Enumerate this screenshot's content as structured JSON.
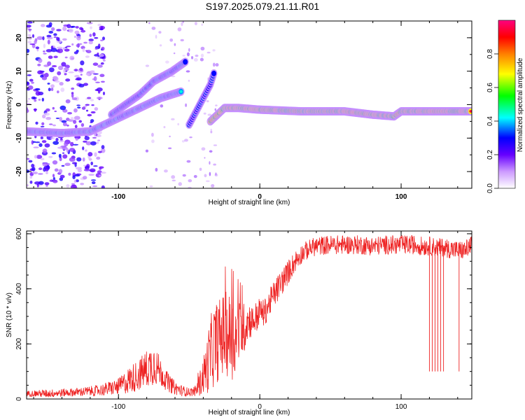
{
  "figure": {
    "title": "S197.2025.079.21.11.R01"
  },
  "chart_data": [
    {
      "type": "heatmap",
      "xlabel": "Height of straight line (km)",
      "ylabel": "Frequency (Hz)",
      "xlim": [
        -165,
        150
      ],
      "ylim": [
        -25,
        25
      ],
      "xticks": [
        -100,
        0,
        100
      ],
      "yticks": [
        -20,
        -10,
        0,
        10,
        20
      ],
      "colorbar": {
        "label": "Normalized spectral amplitude",
        "range": [
          0,
          1
        ],
        "ticks": [
          "0.0",
          "0.2",
          "0.4",
          "0.6",
          "0.8"
        ],
        "colormap": [
          "#ffffff",
          "#cc99ff",
          "#6600ff",
          "#0000ff",
          "#00ffff",
          "#00ff00",
          "#ffff00",
          "#ff7f00",
          "#ff0000",
          "#ff0080"
        ]
      },
      "ridges": [
        {
          "points": [
            [
              -165,
              -8
            ],
            [
              -140,
              -8.5
            ],
            [
              -120,
              -8
            ],
            [
              -100,
              -4
            ],
            [
              -85,
              -1
            ],
            [
              -70,
              2
            ],
            [
              -55,
              4
            ]
          ],
          "amplitude": 0.45
        },
        {
          "points": [
            [
              -105,
              -3
            ],
            [
              -95,
              0
            ],
            [
              -85,
              3
            ],
            [
              -75,
              7
            ],
            [
              -62,
              10
            ],
            [
              -52,
              13
            ]
          ],
          "amplitude": 0.4
        },
        {
          "points": [
            [
              -50,
              -6
            ],
            [
              -45,
              -2
            ],
            [
              -40,
              2
            ],
            [
              -35,
              6
            ],
            [
              -32,
              10
            ]
          ],
          "amplitude": 0.35
        },
        {
          "points": [
            [
              -35,
              -5
            ],
            [
              -30,
              -3
            ],
            [
              -25,
              -1
            ],
            [
              -15,
              -1
            ],
            [
              0,
              -1.5
            ],
            [
              30,
              -2
            ],
            [
              60,
              -2
            ],
            [
              80,
              -3
            ],
            [
              95,
              -3.5
            ],
            [
              100,
              -2
            ],
            [
              120,
              -2
            ],
            [
              150,
              -2
            ]
          ],
          "amplitude": 0.95
        }
      ],
      "noise_region": {
        "x": [
          -165,
          -110
        ],
        "freq_range": [
          -25,
          25
        ]
      }
    },
    {
      "type": "line",
      "xlabel": "Height of straight line (km)",
      "ylabel": "SNR (10 * v/v)",
      "xlim": [
        -165,
        150
      ],
      "ylim": [
        0,
        610
      ],
      "xticks": [
        -100,
        0,
        100
      ],
      "yticks": [
        0,
        200,
        400,
        600
      ],
      "series": [
        {
          "color": "#ee2222",
          "x": [
            -165,
            -150,
            -130,
            -115,
            -100,
            -92,
            -85,
            -80,
            -75,
            -70,
            -65,
            -60,
            -55,
            -50,
            -45,
            -42,
            -38,
            -35,
            -32,
            -28,
            -25,
            -22,
            -18,
            -15,
            -12,
            -8,
            -5,
            -2,
            0,
            3,
            5,
            8,
            10,
            15,
            20,
            25,
            30,
            35,
            40,
            50,
            60,
            70,
            80,
            90,
            100,
            105,
            110,
            115,
            120,
            125,
            130,
            135,
            140,
            145,
            150
          ],
          "y": [
            20,
            20,
            25,
            30,
            45,
            70,
            90,
            110,
            130,
            95,
            60,
            40,
            30,
            25,
            30,
            60,
            110,
            160,
            200,
            220,
            240,
            230,
            220,
            240,
            250,
            290,
            280,
            300,
            320,
            310,
            330,
            360,
            380,
            420,
            460,
            500,
            530,
            545,
            555,
            560,
            560,
            560,
            555,
            560,
            560,
            560,
            560,
            555,
            555,
            550,
            550,
            545,
            540,
            540,
            560
          ],
          "amplitude": [
            10,
            15,
            15,
            20,
            30,
            50,
            60,
            70,
            80,
            50,
            35,
            25,
            20,
            15,
            20,
            50,
            90,
            140,
            150,
            150,
            150,
            160,
            150,
            120,
            100,
            70,
            60,
            60,
            50,
            50,
            50,
            50,
            50,
            50,
            45,
            40,
            35,
            35,
            35,
            35,
            35,
            35,
            35,
            35,
            35,
            35,
            35,
            35,
            35,
            35,
            35,
            35,
            35,
            35,
            35
          ]
        }
      ],
      "dropouts": [
        {
          "x": 120,
          "y": 100
        },
        {
          "x": 122,
          "y": 100
        },
        {
          "x": 124,
          "y": 100
        },
        {
          "x": 126,
          "y": 100
        },
        {
          "x": 128,
          "y": 100
        },
        {
          "x": 130,
          "y": 100
        },
        {
          "x": 141,
          "y": 100
        }
      ]
    }
  ]
}
